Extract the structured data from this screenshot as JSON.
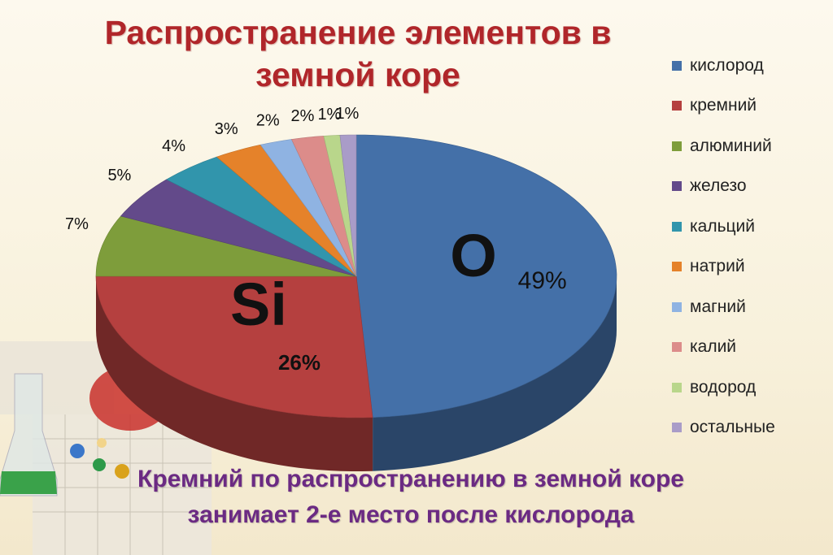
{
  "title": "Распространение элементов в земной коре",
  "caption": {
    "line1": "Кремний по распространению в земной коре",
    "line2": "занимает 2-е место после кислорода"
  },
  "big_labels": {
    "oxygen": "O",
    "silicon": "Si"
  },
  "chart_data": {
    "type": "pie",
    "title": "Распространение элементов в земной коре",
    "legend_position": "right",
    "slices": [
      {
        "name": "кислород",
        "value": 49,
        "label": "49%",
        "color": "#4470a8"
      },
      {
        "name": "кремний",
        "value": 26,
        "label": "26%",
        "color": "#b5403f"
      },
      {
        "name": "алюминий",
        "value": 7,
        "label": "7%",
        "color": "#7e9d3b"
      },
      {
        "name": "железо",
        "value": 5,
        "label": "5%",
        "color": "#634a8a"
      },
      {
        "name": "кальций",
        "value": 4,
        "label": "4%",
        "color": "#3195ac"
      },
      {
        "name": "натрий",
        "value": 3,
        "label": "3%",
        "color": "#e5822a"
      },
      {
        "name": "магний",
        "value": 2,
        "label": "2%",
        "color": "#8fb3e2"
      },
      {
        "name": "калий",
        "value": 2,
        "label": "2%",
        "color": "#dc8c8a"
      },
      {
        "name": "водород",
        "value": 1,
        "label": "1%",
        "color": "#b9d68b"
      },
      {
        "name": "остальные",
        "value": 1,
        "label": "1%",
        "color": "#a99cc8"
      }
    ]
  }
}
